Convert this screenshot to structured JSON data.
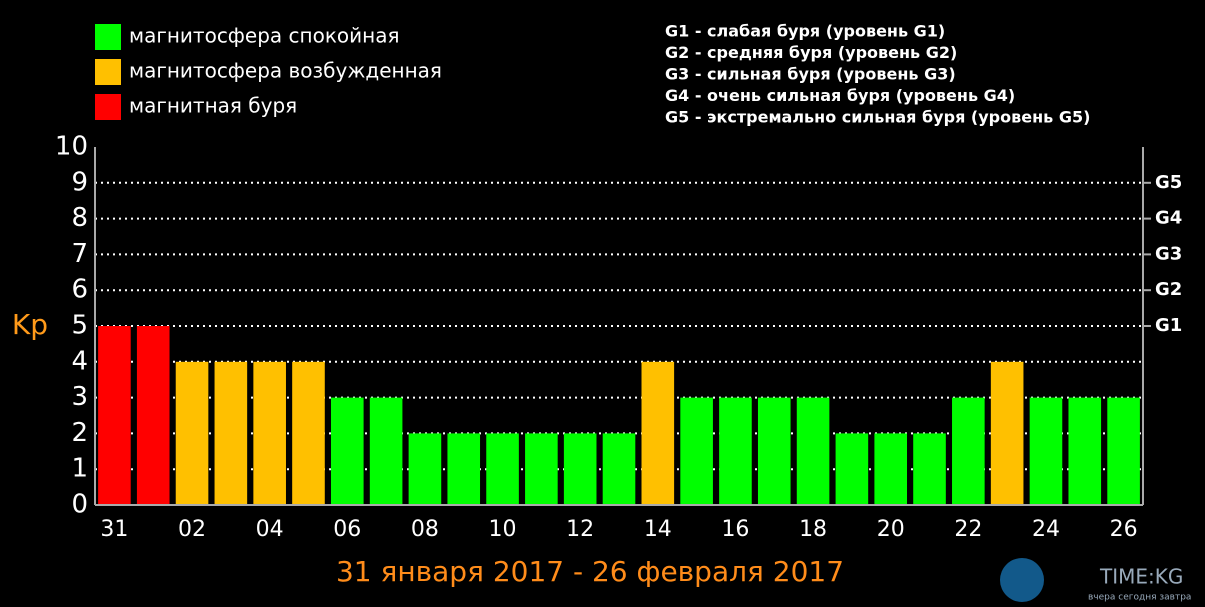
{
  "chart_data": {
    "type": "bar",
    "title": "31 января 2017 - 26 февраля 2017",
    "y_label": "Kp",
    "legend": [
      {
        "name": "магнитосфера спокойная",
        "color": "#00ff00"
      },
      {
        "name": "магнитосфера возбужденная",
        "color": "#ffc000"
      },
      {
        "name": "магнитная буря",
        "color": "#ff0000"
      }
    ],
    "notes": [
      "G1 - слабая буря (уровень G1)",
      "G2 - средняя буря (уровень G2)",
      "G3 - сильная буря (уровень G3)",
      "G4 - очень сильная буря (уровень G4)",
      "G5 - экстремально сильная буря (уровень G5)"
    ],
    "categories": [
      "31",
      null,
      "02",
      null,
      "04",
      null,
      "06",
      null,
      "08",
      null,
      "10",
      null,
      "12",
      null,
      "14",
      null,
      "16",
      null,
      "18",
      null,
      "20",
      null,
      "22",
      null,
      "24",
      null,
      "26"
    ],
    "values": [
      5,
      5,
      4,
      4,
      4,
      4,
      3,
      3,
      2,
      2,
      2,
      2,
      2,
      2,
      4,
      3,
      3,
      3,
      3,
      2,
      2,
      2,
      3,
      4,
      3,
      3,
      3
    ],
    "colors": [
      "#ff0000",
      "#ff0000",
      "#ffc000",
      "#ffc000",
      "#ffc000",
      "#ffc000",
      "#00ff00",
      "#00ff00",
      "#00ff00",
      "#00ff00",
      "#00ff00",
      "#00ff00",
      "#00ff00",
      "#00ff00",
      "#ffc000",
      "#00ff00",
      "#00ff00",
      "#00ff00",
      "#00ff00",
      "#00ff00",
      "#00ff00",
      "#00ff00",
      "#00ff00",
      "#ffc000",
      "#00ff00",
      "#00ff00",
      "#00ff00"
    ],
    "ylim": [
      0,
      10
    ],
    "yticks": [
      0,
      1,
      2,
      3,
      4,
      5,
      6,
      7,
      8,
      9,
      10
    ],
    "y2lim": [
      0,
      10
    ],
    "y2ticks": [
      {
        "value": 5,
        "label": "G1"
      },
      {
        "value": 6,
        "label": "G2"
      },
      {
        "value": 7,
        "label": "G3"
      },
      {
        "value": 8,
        "label": "G4"
      },
      {
        "value": 9,
        "label": "G5"
      }
    ],
    "grid": true,
    "watermark": {
      "brand": "TIME:KG",
      "slogan": "вчера сегодня завтра"
    }
  }
}
